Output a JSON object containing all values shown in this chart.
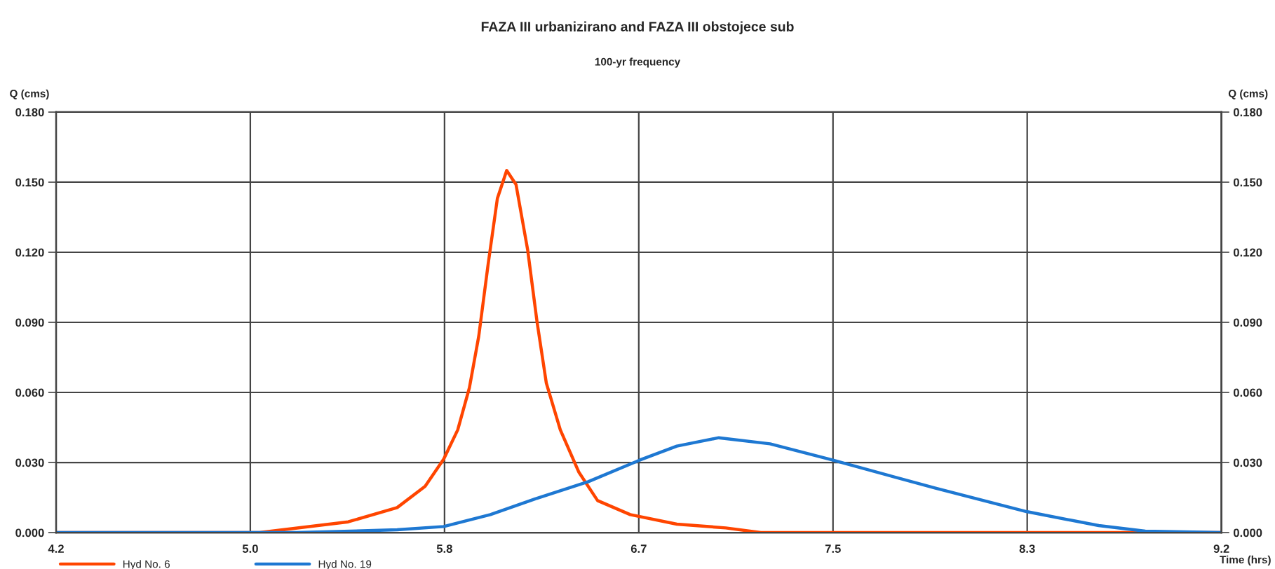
{
  "chart_data": {
    "type": "line",
    "title": "FAZA III urbanizirano and FAZA III obstojece sub",
    "subtitle": "100-yr frequency",
    "xlabel": "Time (hrs)",
    "ylabel": "Q (cms)",
    "y2label": "Q (cms)",
    "series": [
      {
        "name": "Hyd No. 6",
        "color": "#ff4500",
        "x": [
          4.1667,
          5.04,
          5.42,
          5.63,
          5.75,
          5.83,
          5.89,
          5.94,
          5.98,
          6.02,
          6.06,
          6.1,
          6.14,
          6.19,
          6.23,
          6.27,
          6.33,
          6.41,
          6.49,
          6.63,
          6.83,
          7.04,
          7.19,
          9.1667
        ],
        "values": [
          0.0,
          0.0,
          0.0046,
          0.0107,
          0.0198,
          0.0315,
          0.044,
          0.062,
          0.084,
          0.1146,
          0.143,
          0.155,
          0.149,
          0.121,
          0.0904,
          0.064,
          0.044,
          0.0258,
          0.0137,
          0.0077,
          0.0036,
          0.002,
          0.0,
          0.0
        ]
      },
      {
        "name": "Hyd No. 19",
        "color": "#1e78d2",
        "x": [
          4.1667,
          5.2,
          5.63,
          5.83,
          6.03,
          6.23,
          6.45,
          6.67,
          6.83,
          7.01,
          7.23,
          7.5,
          7.94,
          8.33,
          8.64,
          8.84,
          9.1667
        ],
        "values": [
          0.0,
          0.0,
          0.0012,
          0.0026,
          0.0077,
          0.0147,
          0.0218,
          0.031,
          0.037,
          0.0406,
          0.038,
          0.031,
          0.019,
          0.009,
          0.003,
          0.0006,
          0.0
        ]
      }
    ],
    "xlim": [
      4.1667,
      9.1667
    ],
    "xticks": [
      {
        "value": 4.1667,
        "label": "4.2"
      },
      {
        "value": 5.0,
        "label": "5.0"
      },
      {
        "value": 5.8333,
        "label": "5.8"
      },
      {
        "value": 6.6667,
        "label": "6.7"
      },
      {
        "value": 7.5,
        "label": "7.5"
      },
      {
        "value": 8.3333,
        "label": "8.3"
      },
      {
        "value": 9.1667,
        "label": "9.2"
      }
    ],
    "ylim": [
      0,
      0.18
    ],
    "yticks": [
      {
        "value": 0,
        "label": "0.000"
      },
      {
        "value": 0.03,
        "label": "0.030"
      },
      {
        "value": 0.06,
        "label": "0.060"
      },
      {
        "value": 0.09,
        "label": "0.090"
      },
      {
        "value": 0.12,
        "label": "0.120"
      },
      {
        "value": 0.15,
        "label": "0.150"
      },
      {
        "value": 0.18,
        "label": "0.180"
      }
    ],
    "y2lim": [
      0,
      0.18
    ],
    "y2ticks": [
      {
        "value": 0,
        "label": "0.000"
      },
      {
        "value": 0.03,
        "label": "0.030"
      },
      {
        "value": 0.06,
        "label": "0.060"
      },
      {
        "value": 0.09,
        "label": "0.090"
      },
      {
        "value": 0.12,
        "label": "0.120"
      },
      {
        "value": 0.15,
        "label": "0.150"
      },
      {
        "value": 0.18,
        "label": "0.180"
      }
    ],
    "grid": true,
    "legend": "bottom left",
    "line_style": "solid"
  }
}
